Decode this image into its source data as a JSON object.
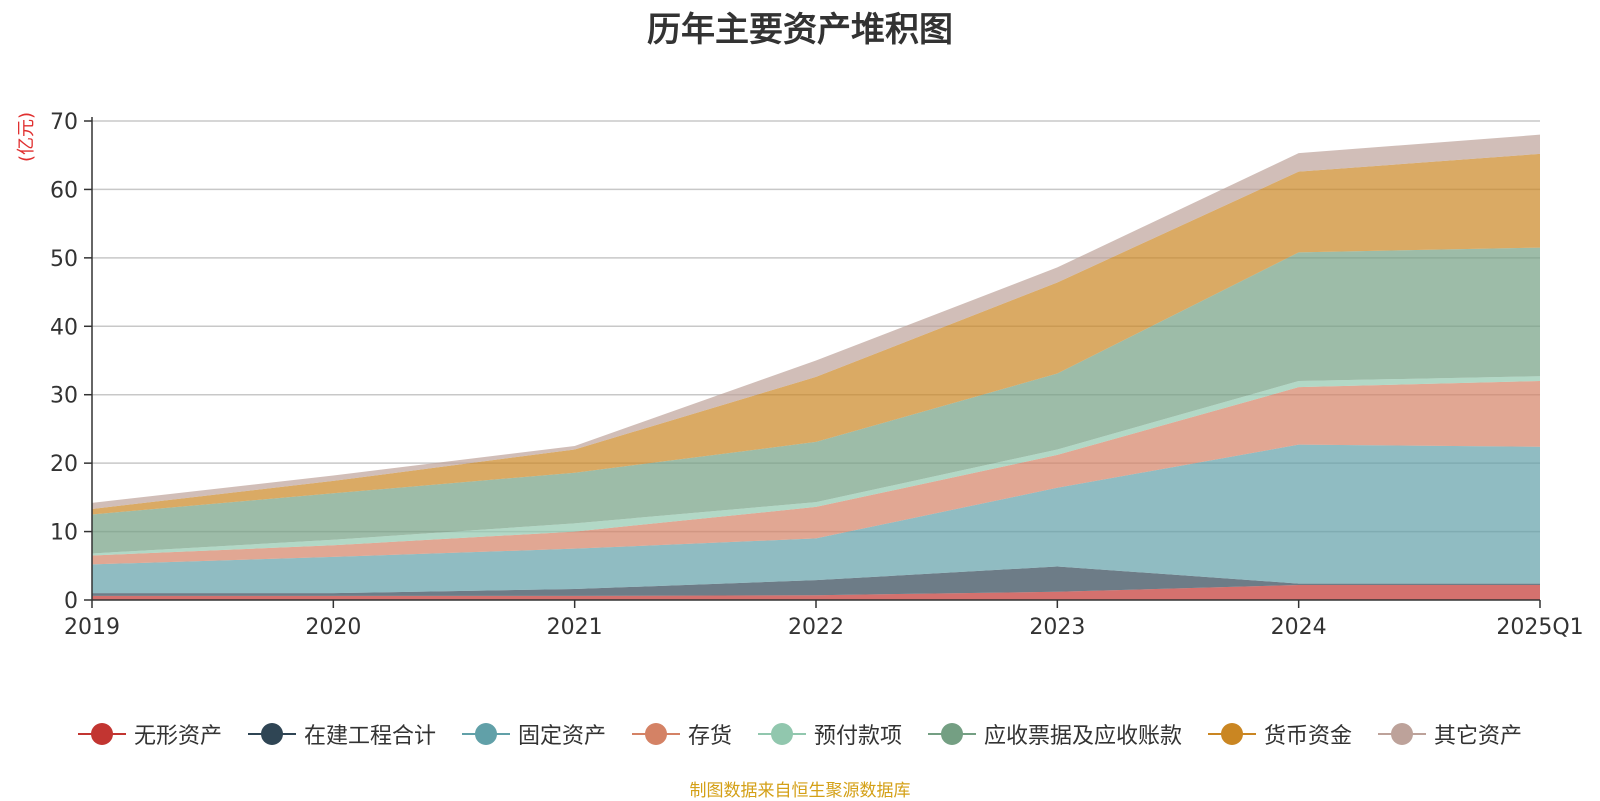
{
  "chart_data": {
    "type": "area",
    "stacked": true,
    "title": "历年主要资产堆积图",
    "unit_label": "(亿元)",
    "x": [
      "2019",
      "2020",
      "2021",
      "2022",
      "2023",
      "2024",
      "2025Q1"
    ],
    "ylim": [
      0,
      70
    ],
    "yticks": [
      0,
      10,
      20,
      30,
      40,
      50,
      60,
      70
    ],
    "grid": true,
    "legend_position": "bottom",
    "series": [
      {
        "name": "无形资产",
        "color": "#c23531",
        "values": [
          0.6,
          0.6,
          0.6,
          0.7,
          1.2,
          2.2,
          2.2
        ]
      },
      {
        "name": "在建工程合计",
        "color": "#2f4554",
        "values": [
          0.4,
          0.4,
          1.0,
          2.2,
          3.7,
          0.2,
          0.2
        ]
      },
      {
        "name": "固定资产",
        "color": "#61a0a8",
        "values": [
          4.2,
          5.3,
          5.9,
          6.1,
          11.5,
          20.3,
          20.0
        ]
      },
      {
        "name": "存货",
        "color": "#d48265",
        "values": [
          1.3,
          1.7,
          2.5,
          4.6,
          4.8,
          8.4,
          9.6
        ]
      },
      {
        "name": "预付款项",
        "color": "#91c7ae",
        "values": [
          0.3,
          0.8,
          1.2,
          0.7,
          0.8,
          0.9,
          0.7
        ]
      },
      {
        "name": "应收票据及应收账款",
        "color": "#749f83",
        "values": [
          5.7,
          6.8,
          7.4,
          8.8,
          11.1,
          18.8,
          18.8
        ]
      },
      {
        "name": "货币资金",
        "color": "#ca8622",
        "values": [
          0.8,
          1.8,
          3.4,
          9.5,
          13.3,
          11.8,
          13.7
        ]
      },
      {
        "name": "其它资产",
        "color": "#bda29a",
        "values": [
          0.9,
          0.8,
          0.5,
          2.4,
          2.2,
          2.7,
          2.8
        ]
      }
    ]
  },
  "footer": {
    "source": "制图数据来自恒生聚源数据库"
  }
}
